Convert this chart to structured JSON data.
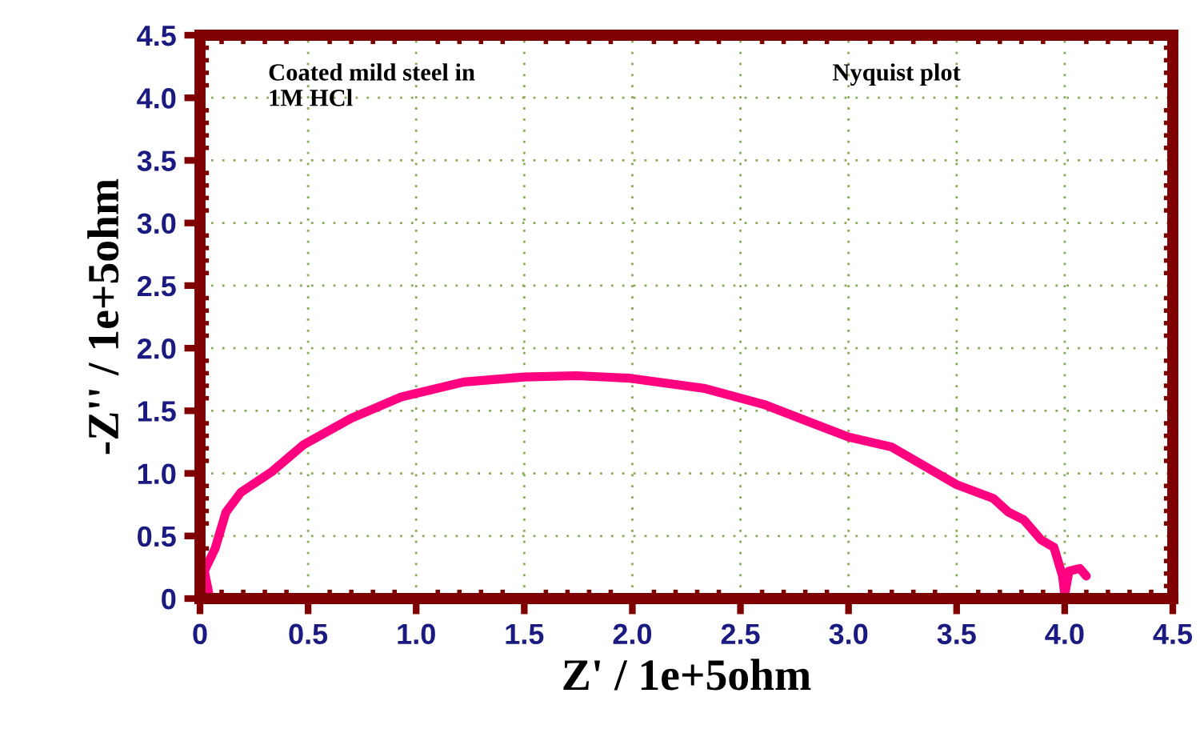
{
  "chart_data": {
    "type": "line",
    "xlabel": "Z' / 1e+5ohm",
    "ylabel": "-Z'' / 1e+5ohm",
    "annotations": [
      "Coated mild steel in\n1M HCl",
      "Nyquist plot"
    ],
    "series": [
      {
        "color": "#ff0080",
        "x": [
          0.04,
          0.02,
          0.07,
          0.12,
          0.19,
          0.33,
          0.48,
          0.7,
          0.93,
          1.22,
          1.5,
          1.74,
          1.99,
          2.33,
          2.61,
          3.0,
          3.2,
          3.5,
          3.67,
          3.74,
          3.81,
          3.89,
          3.95,
          3.99,
          4.0,
          4.02,
          4.07,
          4.1
        ],
        "values": [
          0.05,
          0.22,
          0.4,
          0.69,
          0.85,
          1.01,
          1.23,
          1.44,
          1.61,
          1.73,
          1.77,
          1.78,
          1.76,
          1.68,
          1.55,
          1.29,
          1.21,
          0.91,
          0.8,
          0.69,
          0.63,
          0.47,
          0.41,
          0.18,
          0.03,
          0.22,
          0.24,
          0.18
        ]
      }
    ],
    "xlim": [
      0,
      4.5
    ],
    "ylim": [
      0,
      4.5
    ],
    "xticks": [
      0,
      {
        "value": 0.5,
        "label": "0.5"
      },
      {
        "value": 1,
        "label": "1.0"
      },
      {
        "value": 1.5,
        "label": "1.5"
      },
      {
        "value": 2,
        "label": "2.0"
      },
      {
        "value": 2.5,
        "label": "2.5"
      },
      {
        "value": 3,
        "label": "3.0"
      },
      {
        "value": 3.5,
        "label": "3.5"
      },
      {
        "value": 4,
        "label": "4.0"
      },
      {
        "value": 4.5,
        "label": "4.5"
      }
    ],
    "yticks": [
      0,
      {
        "value": 0.5,
        "label": "0.5"
      },
      {
        "value": 1,
        "label": "1.0"
      },
      {
        "value": 1.5,
        "label": "1.5"
      },
      {
        "value": 2,
        "label": "2.0"
      },
      {
        "value": 2.5,
        "label": "2.5"
      },
      {
        "value": 3,
        "label": "3.0"
      },
      {
        "value": 3.5,
        "label": "3.5"
      },
      {
        "value": 4,
        "label": "4.0"
      },
      {
        "value": 4.5,
        "label": "4.5"
      }
    ],
    "grid": true,
    "line_style": "solid"
  }
}
